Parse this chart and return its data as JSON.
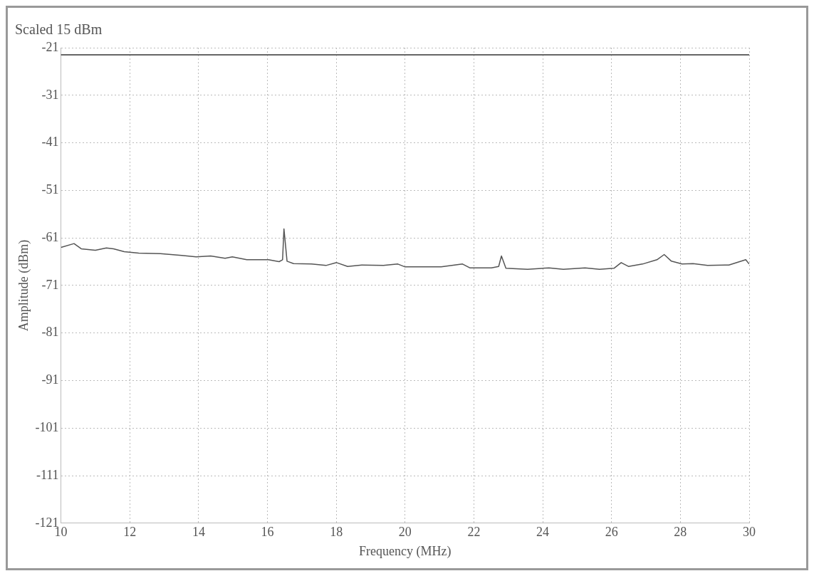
{
  "chart_data": {
    "type": "line",
    "title": "Scaled 15 dBm",
    "xlabel": "Frequency (MHz)",
    "ylabel": "Amplitude (dBm)",
    "x": [
      10.0,
      10.38,
      10.59,
      11.0,
      11.32,
      11.53,
      11.84,
      12.26,
      12.89,
      13.51,
      13.93,
      14.35,
      14.77,
      14.98,
      15.4,
      16.03,
      16.34,
      16.44,
      16.48,
      16.57,
      16.76,
      17.28,
      17.7,
      18.01,
      18.33,
      18.74,
      19.37,
      19.79,
      20.0,
      20.42,
      21.05,
      21.67,
      21.88,
      22.51,
      22.72,
      22.8,
      22.93,
      23.56,
      24.18,
      24.6,
      25.23,
      25.65,
      26.07,
      26.28,
      26.49,
      26.9,
      27.32,
      27.53,
      27.74,
      28.05,
      28.37,
      28.79,
      29.41,
      29.9,
      30.0
    ],
    "series": [
      {
        "color": "#555555",
        "values": [
          -63.0,
          -62.2,
          -63.3,
          -63.6,
          -63.1,
          -63.3,
          -63.9,
          -64.2,
          -64.3,
          -64.7,
          -65.0,
          -64.8,
          -65.3,
          -65.0,
          -65.6,
          -65.6,
          -66.0,
          -65.6,
          -59.1,
          -65.9,
          -66.4,
          -66.5,
          -66.8,
          -66.2,
          -67.0,
          -66.7,
          -66.8,
          -66.5,
          -67.1,
          -67.1,
          -67.1,
          -66.5,
          -67.3,
          -67.3,
          -67.0,
          -64.8,
          -67.4,
          -67.6,
          -67.3,
          -67.6,
          -67.3,
          -67.6,
          -67.4,
          -66.2,
          -67.0,
          -66.5,
          -65.6,
          -64.5,
          -65.9,
          -66.5,
          -66.4,
          -66.8,
          -66.7,
          -65.6,
          -66.5
        ]
      }
    ],
    "xlim": [
      10,
      30
    ],
    "xticks": [
      10,
      12,
      14,
      16,
      18,
      20,
      22,
      24,
      26,
      28,
      30
    ],
    "ylim": [
      -121,
      -21
    ],
    "yticks": [
      -121,
      -111,
      -101,
      -91,
      -81,
      -71,
      -61,
      -51,
      -41,
      -31,
      -21
    ],
    "ref_lines": [
      {
        "axis": "y",
        "value": -22.5,
        "color": "#666666",
        "line_style": "solid"
      }
    ],
    "grid": true,
    "legend": false,
    "marker": "none",
    "line_style": "solid"
  }
}
